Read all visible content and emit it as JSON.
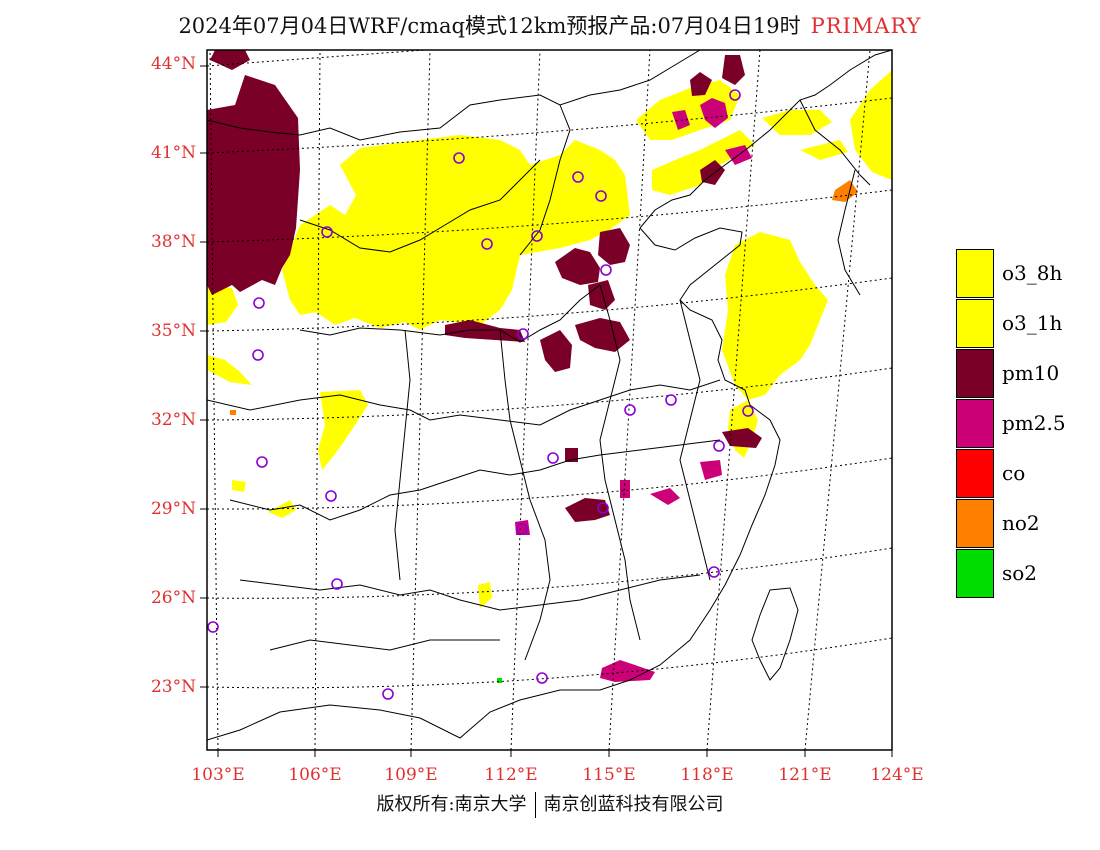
{
  "title": {
    "main": "2024年07月04日WRF/cmaq模式12km预报产品:07月04日19时",
    "tag": "PRIMARY"
  },
  "lat_labels": [
    "44°N",
    "41°N",
    "38°N",
    "35°N",
    "32°N",
    "29°N",
    "26°N",
    "23°N"
  ],
  "lon_labels": [
    "103°E",
    "106°E",
    "109°E",
    "112°E",
    "115°E",
    "118°E",
    "121°E",
    "124°E"
  ],
  "legend": [
    {
      "label": "o3_8h",
      "color": "#ffff00"
    },
    {
      "label": "o3_1h",
      "color": "#ffff00"
    },
    {
      "label": "pm10",
      "color": "#7a0028"
    },
    {
      "label": "pm2.5",
      "color": "#cc0077"
    },
    {
      "label": "co",
      "color": "#ff0000"
    },
    {
      "label": "no2",
      "color": "#ff7f00"
    },
    {
      "label": "so2",
      "color": "#00dd00"
    }
  ],
  "footer": {
    "left": "版权所有:南京大学",
    "right": "南京创蓝科技有限公司"
  },
  "colors": {
    "o3": "#ffff00",
    "pm10": "#7a0028",
    "pm25": "#cc0077",
    "no2": "#ff7f00",
    "so2": "#00dd00",
    "axis_label": "#e03030",
    "station": "#8a00d4"
  }
}
